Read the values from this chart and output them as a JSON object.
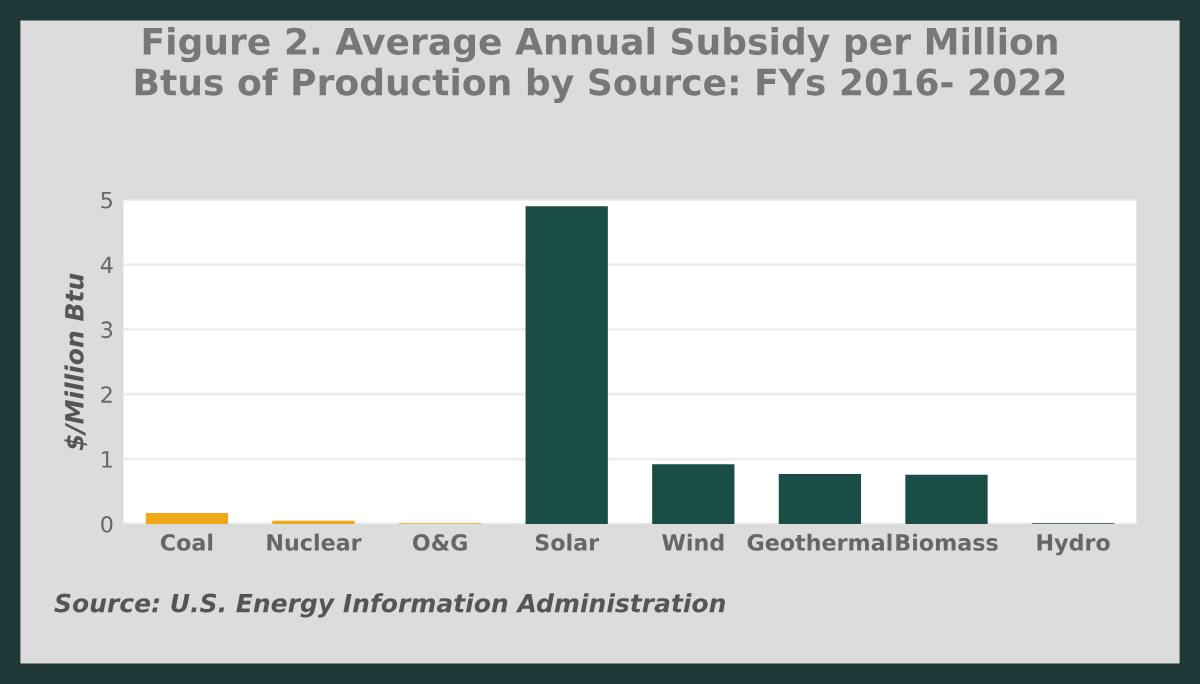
{
  "chart_data": {
    "type": "bar",
    "title": "Figure 2. Average Annual Subsidy per Million\nBtus of Production by Source: FYs 2016- 2022",
    "ylabel": "$/Million Btu",
    "categories": [
      "Coal",
      "Nuclear",
      "O&G",
      "Solar",
      "Wind",
      "Geothermal",
      "Biomass",
      "Hydro"
    ],
    "values": [
      0.17,
      0.05,
      0.01,
      4.9,
      0.92,
      0.77,
      0.76,
      0.01
    ],
    "colors": [
      "#f0a818",
      "#f0a818",
      "#f0a818",
      "#1a4d45",
      "#1a4d45",
      "#1a4d45",
      "#1a4d45",
      "#1a4d45"
    ],
    "ylim": [
      0,
      5
    ],
    "yticks": [
      0,
      1,
      2,
      3,
      4,
      5
    ],
    "grid": "y",
    "legend": false,
    "annotations": [
      "Source: U.S. Energy Information Administration"
    ]
  }
}
